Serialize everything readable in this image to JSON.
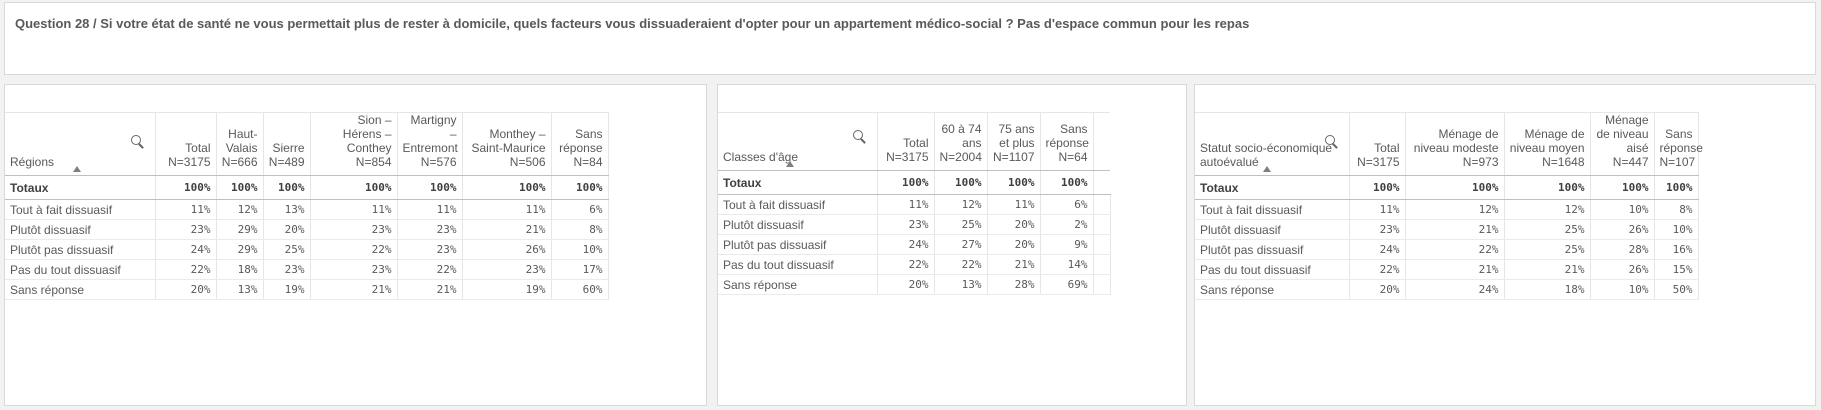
{
  "title": "Question 28 / Si votre état de santé ne vous permettait plus de rester à domicile, quels facteurs vous dissuaderaient d'opter pour un appartement médico-social ? Pas d'espace commun pour les repas",
  "tables": [
    {
      "id": "regions",
      "dimension": "Régions",
      "columns": [
        {
          "label": "Total",
          "n": "N=3175"
        },
        {
          "label": "Haut-Valais",
          "n": "N=666"
        },
        {
          "label": "Sierre",
          "n": "N=489"
        },
        {
          "label": "Sion – Hérens – Conthey",
          "n": "N=854"
        },
        {
          "label": "Martigny – Entremont",
          "n": "N=576"
        },
        {
          "label": "Monthey – Saint-Maurice",
          "n": "N=506"
        },
        {
          "label": "Sans réponse",
          "n": "N=84"
        }
      ],
      "totals_label": "Totaux",
      "totals": [
        "100%",
        "100%",
        "100%",
        "100%",
        "100%",
        "100%",
        "100%"
      ],
      "rows": [
        {
          "label": "Tout à fait dissuasif",
          "values": [
            "11%",
            "12%",
            "13%",
            "11%",
            "11%",
            "11%",
            "6%"
          ]
        },
        {
          "label": "Plutôt dissuasif",
          "values": [
            "23%",
            "29%",
            "20%",
            "23%",
            "23%",
            "21%",
            "8%"
          ]
        },
        {
          "label": "Plutôt pas dissuasif",
          "values": [
            "24%",
            "29%",
            "25%",
            "22%",
            "23%",
            "26%",
            "10%"
          ]
        },
        {
          "label": "Pas du tout dissuasif",
          "values": [
            "22%",
            "18%",
            "23%",
            "23%",
            "22%",
            "23%",
            "17%"
          ]
        },
        {
          "label": "Sans réponse",
          "values": [
            "20%",
            "13%",
            "19%",
            "21%",
            "21%",
            "19%",
            "60%"
          ]
        }
      ]
    },
    {
      "id": "ages",
      "dimension": "Classes d'âge",
      "columns": [
        {
          "label": "Total",
          "n": "N=3175"
        },
        {
          "label": "60 à 74 ans",
          "n": "N=2004"
        },
        {
          "label": "75 ans et plus",
          "n": "N=1107"
        },
        {
          "label": "Sans réponse",
          "n": "N=64"
        }
      ],
      "totals_label": "Totaux",
      "totals": [
        "100%",
        "100%",
        "100%",
        "100%"
      ],
      "rows": [
        {
          "label": "Tout à fait dissuasif",
          "values": [
            "11%",
            "12%",
            "11%",
            "6%"
          ]
        },
        {
          "label": "Plutôt dissuasif",
          "values": [
            "23%",
            "25%",
            "20%",
            "2%"
          ]
        },
        {
          "label": "Plutôt pas dissuasif",
          "values": [
            "24%",
            "27%",
            "20%",
            "9%"
          ]
        },
        {
          "label": "Pas du tout dissuasif",
          "values": [
            "22%",
            "22%",
            "21%",
            "14%"
          ]
        },
        {
          "label": "Sans réponse",
          "values": [
            "20%",
            "13%",
            "28%",
            "69%"
          ]
        }
      ]
    },
    {
      "id": "statut",
      "dimension": "Statut socio-économique autoévalué",
      "columns": [
        {
          "label": "Total",
          "n": "N=3175"
        },
        {
          "label": "Ménage de niveau modeste",
          "n": "N=973"
        },
        {
          "label": "Ménage de niveau moyen",
          "n": "N=1648"
        },
        {
          "label": "Ménage de niveau aisé",
          "n": "N=447"
        },
        {
          "label": "Sans réponse",
          "n": "N=107"
        }
      ],
      "totals_label": "Totaux",
      "totals": [
        "100%",
        "100%",
        "100%",
        "100%",
        "100%"
      ],
      "rows": [
        {
          "label": "Tout à fait dissuasif",
          "values": [
            "11%",
            "12%",
            "12%",
            "10%",
            "8%"
          ]
        },
        {
          "label": "Plutôt dissuasif",
          "values": [
            "23%",
            "21%",
            "25%",
            "26%",
            "10%"
          ]
        },
        {
          "label": "Plutôt pas dissuasif",
          "values": [
            "24%",
            "22%",
            "25%",
            "28%",
            "16%"
          ]
        },
        {
          "label": "Pas du tout dissuasif",
          "values": [
            "22%",
            "21%",
            "21%",
            "26%",
            "15%"
          ]
        },
        {
          "label": "Sans réponse",
          "values": [
            "20%",
            "24%",
            "18%",
            "10%",
            "50%"
          ]
        }
      ]
    }
  ]
}
